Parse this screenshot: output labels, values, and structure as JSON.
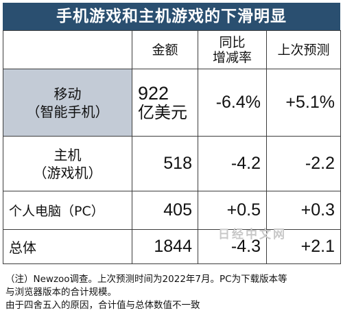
{
  "title": "手机游戏和主机游戏的下滑明显",
  "chart_data": {
    "type": "table",
    "title": "手机游戏和主机游戏的下滑明显",
    "columns": [
      "",
      "金额",
      "同比\n增减率",
      "上次预测"
    ],
    "rows": [
      {
        "label": [
          "移动",
          "（智能手机）"
        ],
        "amount": [
          "922",
          "亿美元"
        ],
        "yoy": "-6.4%",
        "previous_forecast": "+5.1%"
      },
      {
        "label": [
          "主机",
          "（游戏机）"
        ],
        "amount": [
          "518"
        ],
        "yoy": "-4.2",
        "previous_forecast": "-2.2"
      },
      {
        "label": [
          "个人电脑（PC）"
        ],
        "amount": [
          "405"
        ],
        "yoy": "+0.5",
        "previous_forecast": "+0.3"
      },
      {
        "label": [
          "总体"
        ],
        "amount": [
          "1844"
        ],
        "yoy": "-4.3",
        "previous_forecast": "+2.1"
      }
    ],
    "header_fill": "#2a4f70",
    "highlight_fill": "#c3cbd6"
  },
  "watermark": "日经中文网",
  "notes": [
    "（注）Newzoo调查。上次预测时间为2022年7月。PC为下载版本等",
    "与浏览器版本的合计规模。",
    "由于四舍五入的原因，合计值与总体数值不一致"
  ]
}
